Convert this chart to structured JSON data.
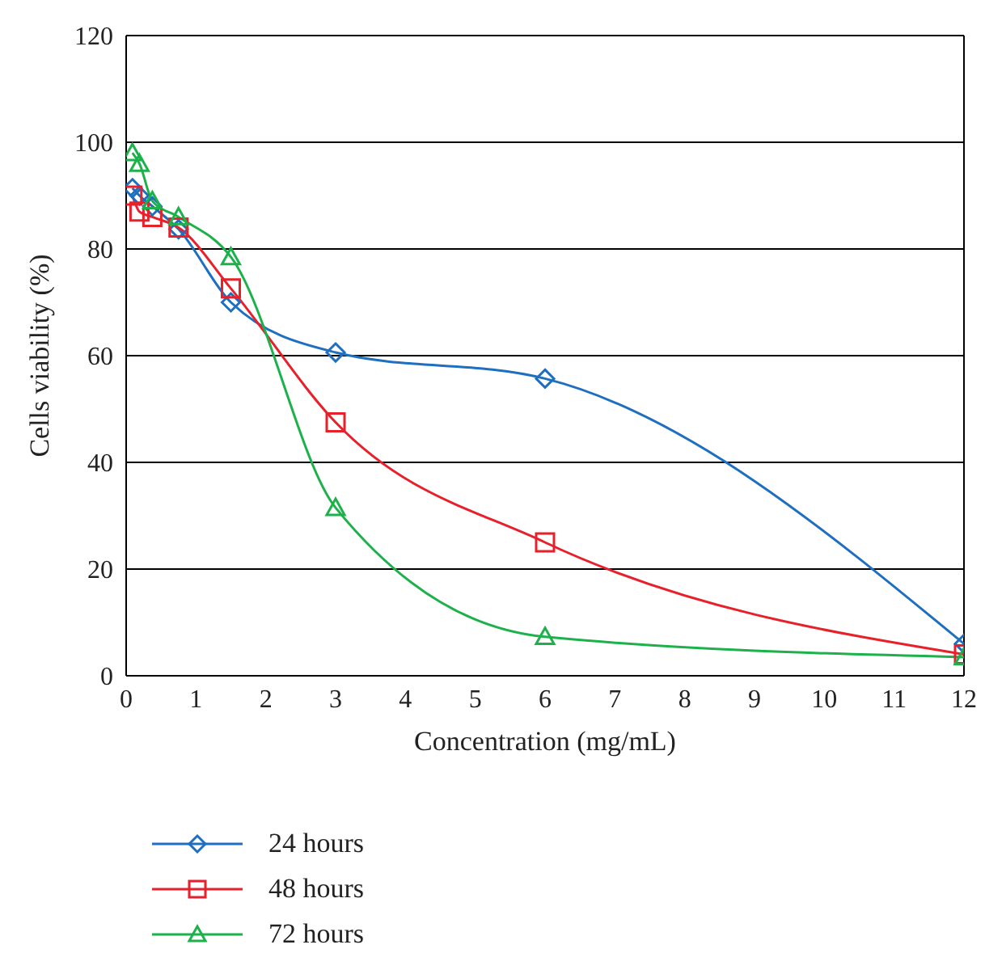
{
  "chart_data": {
    "type": "line",
    "xlabel": "Concentration (mg/mL)",
    "ylabel": "Cells viability (%)",
    "x": [
      0.09,
      0.19,
      0.375,
      0.75,
      1.5,
      3,
      6,
      12
    ],
    "series": [
      {
        "name": "24 hours",
        "color": "#1f6fc0",
        "marker": "diamond",
        "values": [
          91.4,
          90,
          88,
          83.7,
          70,
          60.6,
          55.7,
          6
        ]
      },
      {
        "name": "48 hours",
        "color": "#e8202a",
        "marker": "square",
        "values": [
          90,
          87,
          86,
          84,
          72.6,
          47.5,
          25,
          4
        ]
      },
      {
        "name": "72 hours",
        "color": "#1db14b",
        "marker": "triangle",
        "values": [
          98,
          96,
          89,
          86,
          78.5,
          31.5,
          7.3,
          3.5
        ]
      }
    ],
    "xlim": [
      0,
      12
    ],
    "xticks": [
      0,
      1,
      2,
      3,
      4,
      5,
      6,
      7,
      8,
      9,
      10,
      11,
      12
    ],
    "ylim": [
      0,
      120
    ],
    "yticks": [
      0,
      20,
      40,
      60,
      80,
      100,
      120
    ],
    "grid": "y",
    "legend": "bottom left"
  }
}
